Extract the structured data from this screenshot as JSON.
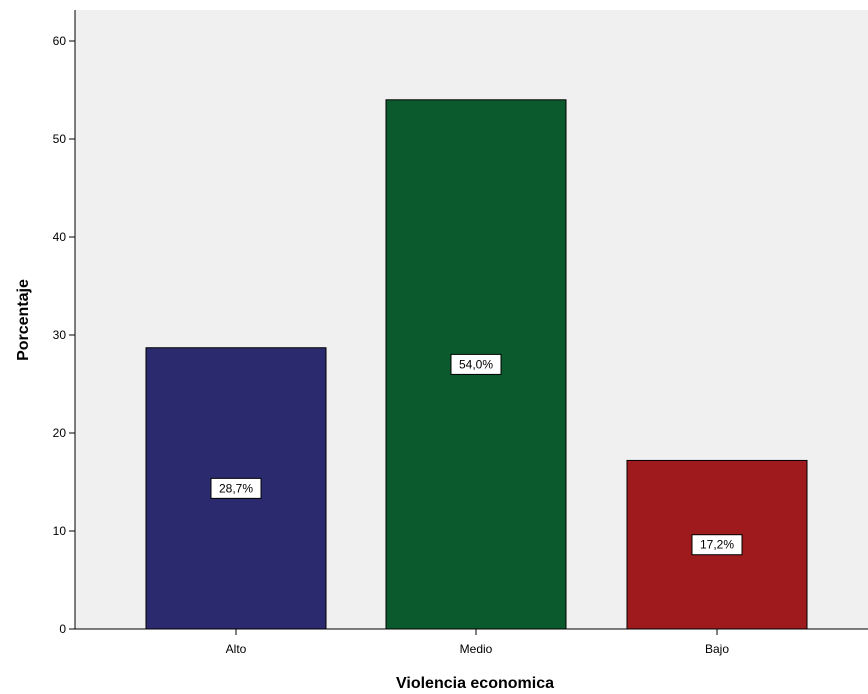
{
  "chart_data": {
    "type": "bar",
    "categories": [
      "Alto",
      "Medio",
      "Bajo"
    ],
    "values": [
      28.7,
      54.0,
      17.2
    ],
    "data_labels": [
      "28,7%",
      "54,0%",
      "17,2%"
    ],
    "colors": [
      "#2b2a6e",
      "#0b5a2e",
      "#9e1a1d"
    ],
    "title": "",
    "xlabel": "Violencia economica",
    "ylabel": "Porcentaje",
    "ylim": [
      0,
      63
    ],
    "yticks": [
      0,
      10,
      20,
      30,
      40,
      50,
      60
    ],
    "ytick_labels": [
      "0",
      "10",
      "20",
      "30",
      "40",
      "50",
      "60"
    ],
    "grid": false,
    "legend": "none",
    "plot_background": "#f0f0f0"
  }
}
